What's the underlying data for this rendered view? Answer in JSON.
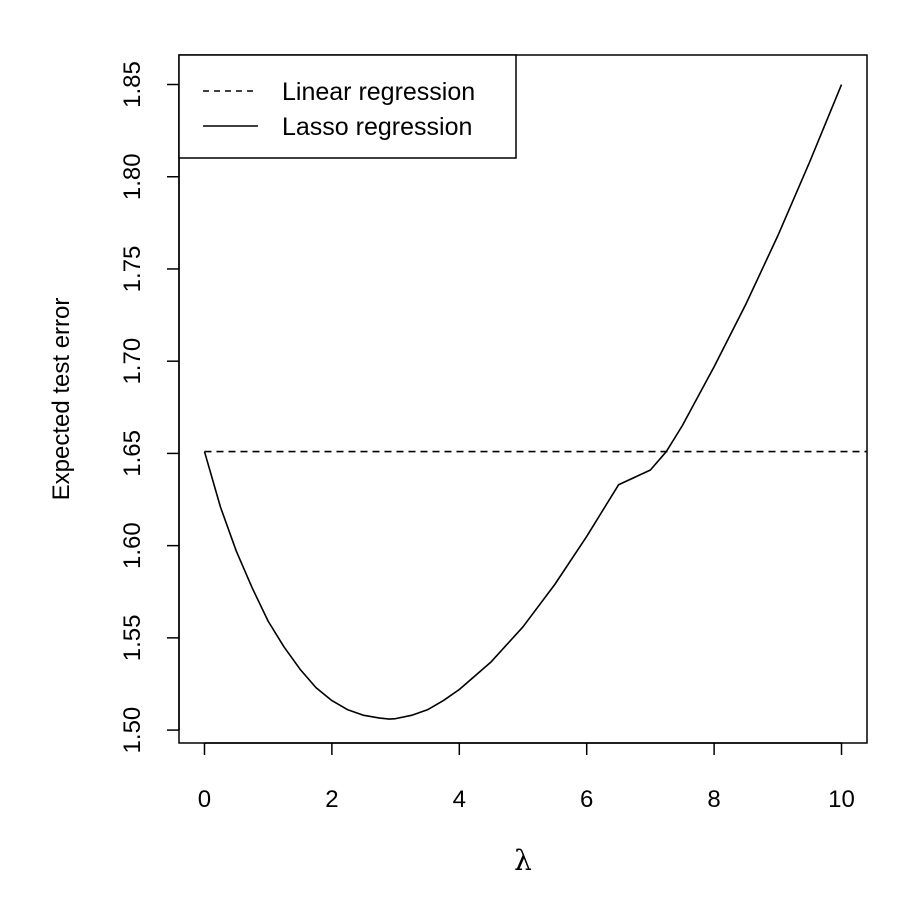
{
  "chart_data": {
    "type": "line",
    "xlabel": "λ",
    "ylabel": "Expected test error",
    "xlim": [
      -0.4,
      10.4
    ],
    "ylim": [
      1.493,
      1.866
    ],
    "x_ticks": [
      0,
      2,
      4,
      6,
      8,
      10
    ],
    "x_tick_labels": [
      "0",
      "2",
      "4",
      "6",
      "8",
      "10"
    ],
    "y_ticks": [
      1.5,
      1.55,
      1.6,
      1.65,
      1.7,
      1.75,
      1.8,
      1.85
    ],
    "y_tick_labels": [
      "1.50",
      "1.55",
      "1.60",
      "1.65",
      "1.70",
      "1.75",
      "1.80",
      "1.85"
    ],
    "grid": false,
    "legend_position": "top-left",
    "series": [
      {
        "name": "Linear regression",
        "style": "dashed",
        "color": "#000000",
        "x": [
          0,
          10.4
        ],
        "y": [
          1.651,
          1.651
        ]
      },
      {
        "name": "Lasso regression",
        "style": "solid",
        "color": "#000000",
        "x": [
          0,
          0.25,
          0.5,
          0.75,
          1.0,
          1.25,
          1.5,
          1.75,
          2.0,
          2.25,
          2.5,
          2.75,
          2.9,
          3.0,
          3.25,
          3.5,
          3.75,
          4.0,
          4.5,
          5.0,
          5.5,
          6.0,
          6.5,
          7.0,
          7.25,
          7.5,
          8.0,
          8.5,
          9.0,
          9.5,
          10.0
        ],
        "y": [
          1.651,
          1.621,
          1.597,
          1.577,
          1.559,
          1.545,
          1.533,
          1.523,
          1.516,
          1.511,
          1.508,
          1.5065,
          1.506,
          1.5062,
          1.508,
          1.511,
          1.516,
          1.522,
          1.537,
          1.556,
          1.579,
          1.605,
          1.633,
          1.641,
          1.651,
          1.665,
          1.697,
          1.731,
          1.768,
          1.808,
          1.85
        ]
      }
    ]
  }
}
